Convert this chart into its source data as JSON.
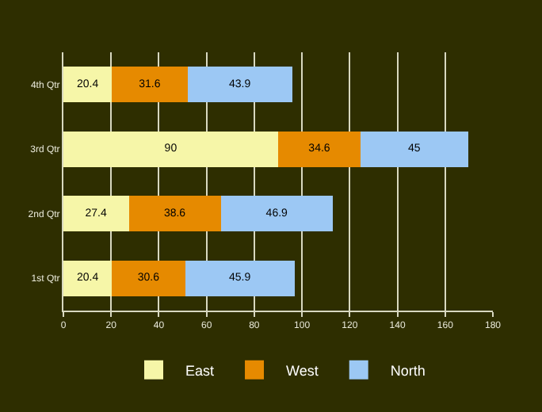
{
  "chart_data": {
    "type": "bar",
    "orientation": "horizontal",
    "stacked": true,
    "data_labels": true,
    "categories": [
      "4th Qtr",
      "3rd Qtr",
      "2nd Qtr",
      "1st Qtr"
    ],
    "series": [
      {
        "name": "East",
        "color": "#f6f6a8",
        "values": [
          20.4,
          90,
          27.4,
          20.4
        ]
      },
      {
        "name": "West",
        "color": "#e68a00",
        "values": [
          31.6,
          34.6,
          38.6,
          30.6
        ]
      },
      {
        "name": "North",
        "color": "#9cc8f4",
        "values": [
          43.9,
          45,
          46.9,
          45.9
        ]
      }
    ],
    "xlim": [
      0,
      180
    ],
    "xticks": [
      0,
      20,
      40,
      60,
      80,
      100,
      120,
      140,
      160,
      180
    ],
    "grid": "x",
    "legend": "bottom"
  }
}
